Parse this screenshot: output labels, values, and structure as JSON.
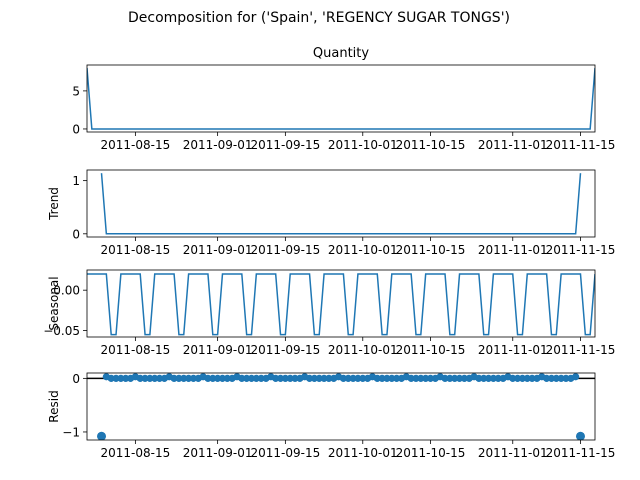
{
  "figure_title": "Decomposition for ('Spain', 'REGENCY SUGAR TONGS')",
  "chart_data": [
    {
      "type": "line",
      "title": "Quantity",
      "ylabel": "",
      "xlabel": "",
      "x_start": "2011-08-05",
      "x_end": "2011-11-18",
      "x_ticks": [
        "2011-08-15",
        "2011-09-01",
        "2011-09-15",
        "2011-10-01",
        "2011-10-15",
        "2011-11-01",
        "2011-11-15"
      ],
      "ylim": [
        -0.4,
        8.4
      ],
      "y_ticks": [
        0,
        5
      ],
      "series": [
        {
          "color": "#1f77b4",
          "x": [
            "2011-08-05",
            "2011-08-06",
            "2011-11-17",
            "2011-11-18"
          ],
          "y": [
            8,
            0,
            0,
            8
          ]
        }
      ]
    },
    {
      "type": "line",
      "title": "",
      "ylabel": "Trend",
      "xlabel": "",
      "x_start": "2011-08-05",
      "x_end": "2011-11-18",
      "x_ticks": [
        "2011-08-15",
        "2011-09-01",
        "2011-09-15",
        "2011-10-01",
        "2011-10-15",
        "2011-11-01",
        "2011-11-15"
      ],
      "ylim": [
        -0.06,
        1.2
      ],
      "y_ticks": [
        0,
        1
      ],
      "series": [
        {
          "color": "#1f77b4",
          "x": [
            "2011-08-08",
            "2011-08-09",
            "2011-11-14",
            "2011-11-15"
          ],
          "y": [
            1.14,
            0,
            0,
            1.14
          ]
        }
      ]
    },
    {
      "type": "line",
      "title": "",
      "ylabel": "Seasonal",
      "xlabel": "",
      "x_start": "2011-08-05",
      "x_end": "2011-11-18",
      "x_ticks": [
        "2011-08-15",
        "2011-09-01",
        "2011-09-15",
        "2011-10-01",
        "2011-10-15",
        "2011-11-01",
        "2011-11-15"
      ],
      "ylim": [
        -0.058,
        0.025
      ],
      "y_ticks": [
        0.0,
        -0.05
      ],
      "y_tick_labels": [
        "0.00",
        "−0.05"
      ],
      "period_days": 7,
      "cycle_start": "2011-08-05",
      "cycle_values": [
        0.02,
        0.02,
        0.02,
        0.02,
        0.02,
        -0.055,
        -0.055
      ],
      "series": [
        {
          "color": "#1f77b4"
        }
      ]
    },
    {
      "type": "scatter",
      "title": "",
      "ylabel": "Resid",
      "xlabel": "",
      "x_start": "2011-08-05",
      "x_end": "2011-11-18",
      "x_ticks": [
        "2011-08-15",
        "2011-09-01",
        "2011-09-15",
        "2011-10-01",
        "2011-10-15",
        "2011-11-01",
        "2011-11-15"
      ],
      "ylim": [
        -1.15,
        0.1
      ],
      "y_ticks": [
        0,
        -1
      ],
      "y_tick_labels": [
        "0",
        "−1"
      ],
      "zero_line": true,
      "points_default_y": 0,
      "points_range": [
        "2011-08-08",
        "2011-11-15"
      ],
      "points_special": [
        {
          "x": "2011-08-08",
          "y": -1.08
        },
        {
          "x": "2011-11-15",
          "y": -1.08
        }
      ],
      "points_small_positive": [
        {
          "x": "2011-08-09",
          "y": 0.03
        },
        {
          "x": "2011-08-15",
          "y": 0.03
        },
        {
          "x": "2011-08-22",
          "y": 0.03
        },
        {
          "x": "2011-08-29",
          "y": 0.03
        },
        {
          "x": "2011-09-05",
          "y": 0.03
        },
        {
          "x": "2011-09-12",
          "y": 0.03
        },
        {
          "x": "2011-09-19",
          "y": 0.03
        },
        {
          "x": "2011-09-26",
          "y": 0.03
        },
        {
          "x": "2011-10-03",
          "y": 0.03
        },
        {
          "x": "2011-10-10",
          "y": 0.03
        },
        {
          "x": "2011-10-17",
          "y": 0.03
        },
        {
          "x": "2011-10-24",
          "y": 0.03
        },
        {
          "x": "2011-10-31",
          "y": 0.03
        },
        {
          "x": "2011-11-07",
          "y": 0.03
        },
        {
          "x": "2011-11-14",
          "y": 0.03
        }
      ],
      "series": [
        {
          "color": "#1f77b4"
        }
      ]
    }
  ]
}
